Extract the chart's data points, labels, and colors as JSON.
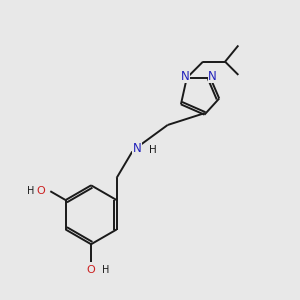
{
  "background_color": "#e8e8e8",
  "bond_color": "#1a1a1a",
  "nitrogen_color": "#2222bb",
  "oxygen_color": "#cc2222",
  "bond_width": 1.4,
  "figsize": [
    3.0,
    3.0
  ],
  "dpi": 100,
  "xlim": [
    0,
    10
  ],
  "ylim": [
    0,
    10
  ]
}
